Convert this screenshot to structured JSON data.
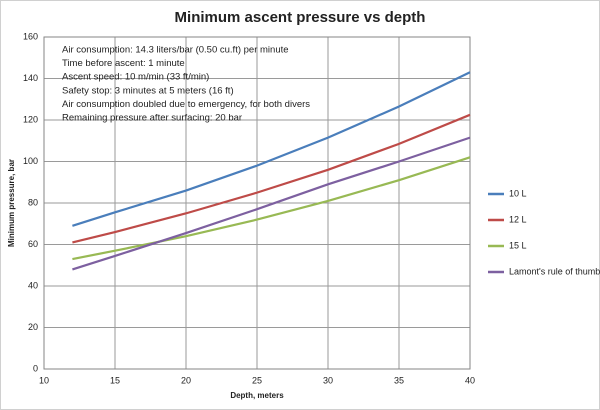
{
  "chart_data": {
    "type": "line",
    "title": "Minimum ascent pressure vs depth",
    "x_label": "Depth, meters",
    "y_label": "Minimum pressure, bar",
    "annotations": [
      "Air consumption: 14.3 liters/bar (0.50 cu.ft) per minute",
      "Time before ascent: 1 minute",
      "Ascent speed: 10 m/min (33 ft/min)",
      "Safety stop: 3 minutes at 5 meters (16 ft)",
      "Air consumption doubled due to emergency, for both divers",
      "Remaining pressure after surfacing: 20 bar"
    ],
    "x": [
      12,
      15,
      20,
      25,
      30,
      35,
      40
    ],
    "series": [
      {
        "name": "10 L",
        "color": "#4a7ebb",
        "values": [
          69,
          75.5,
          86,
          98,
          111.5,
          126.5,
          143
        ]
      },
      {
        "name": "12 L",
        "color": "#be4b48",
        "values": [
          61,
          66,
          75,
          85,
          96,
          108.5,
          122.5
        ]
      },
      {
        "name": "15 L",
        "color": "#98b954",
        "values": [
          53,
          57,
          64,
          72,
          81,
          91,
          102
        ]
      },
      {
        "name": "Lamont's rule of thumb",
        "color": "#7d60a0",
        "values": [
          48,
          54.5,
          65.5,
          77,
          89,
          100,
          111.5
        ]
      }
    ],
    "xlim": [
      10,
      40
    ],
    "xticks": [
      10,
      15,
      20,
      25,
      30,
      35,
      40
    ],
    "ylim": [
      0,
      160
    ],
    "yticks": [
      0,
      20,
      40,
      60,
      80,
      100,
      120,
      140,
      160
    ],
    "grid": true,
    "legend": "right"
  }
}
